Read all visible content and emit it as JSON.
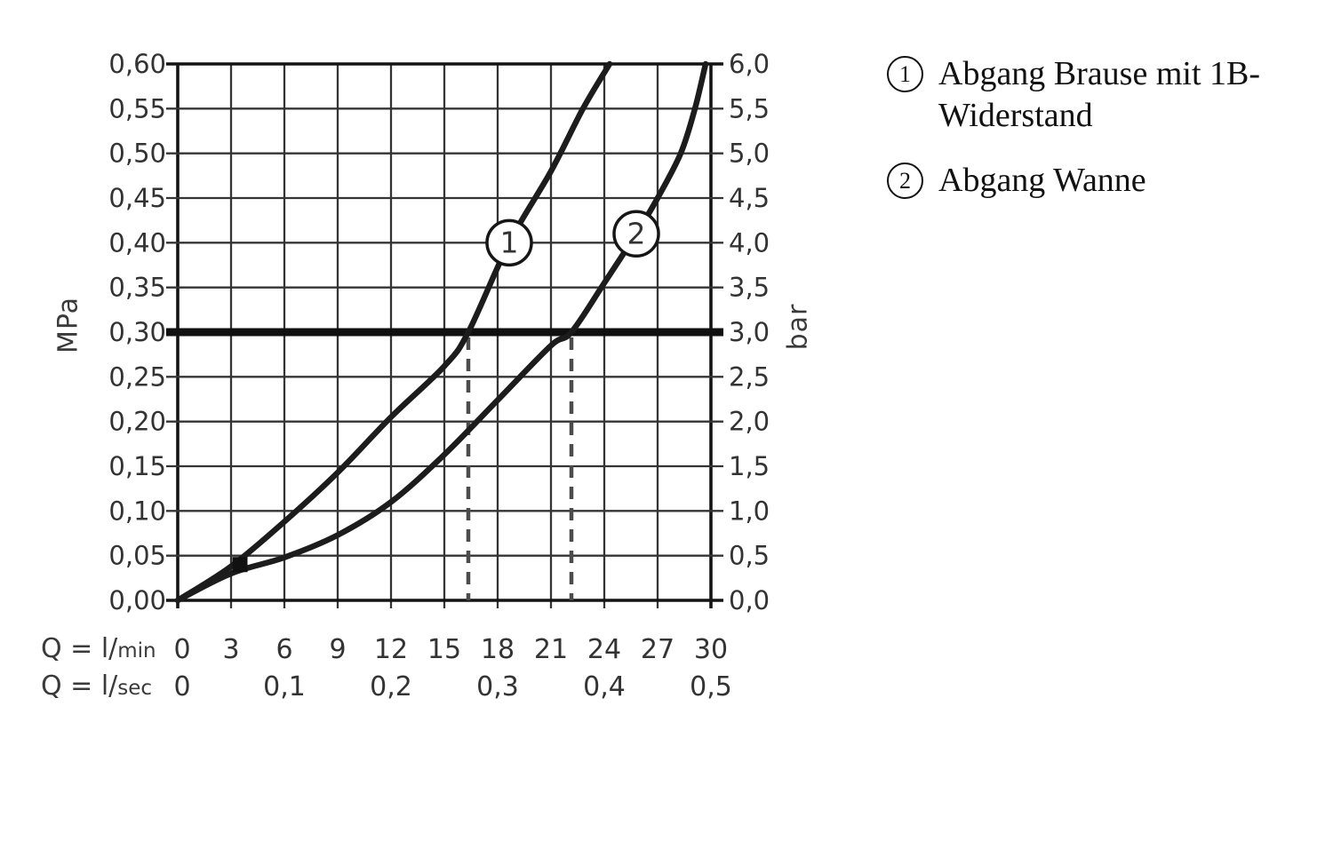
{
  "page": {
    "background": "#ffffff"
  },
  "chart_data": {
    "type": "line",
    "title": "",
    "grid": true,
    "line_color": "#1c1c1c",
    "x_axis": {
      "xlim_lmin": [
        0,
        30
      ],
      "primary_prefix": "Q = l/",
      "primary_unit": "min",
      "secondary_prefix": "Q = l/",
      "secondary_unit": "sec",
      "lmin_ticks": [
        {
          "label": "0",
          "q": 0
        },
        {
          "label": "3",
          "q": 3
        },
        {
          "label": "6",
          "q": 6
        },
        {
          "label": "9",
          "q": 9
        },
        {
          "label": "12",
          "q": 12
        },
        {
          "label": "15",
          "q": 15
        },
        {
          "label": "18",
          "q": 18
        },
        {
          "label": "21",
          "q": 21
        },
        {
          "label": "24",
          "q": 24
        },
        {
          "label": "27",
          "q": 27
        },
        {
          "label": "30",
          "q": 30
        }
      ],
      "lsec_ticks": [
        {
          "label": "0",
          "q": 0
        },
        {
          "label": "0,1",
          "q": 6
        },
        {
          "label": "0,2",
          "q": 12
        },
        {
          "label": "0,3",
          "q": 18
        },
        {
          "label": "0,4",
          "q": 24
        },
        {
          "label": "0,5",
          "q": 30
        }
      ]
    },
    "y_axis_left": {
      "unit": "MPa",
      "ylim": [
        0,
        0.6
      ],
      "step": 0.05,
      "tick_labels_top_to_bottom": [
        "0,60",
        "0,55",
        "0,50",
        "0,45",
        "0,40",
        "0,35",
        "0,30",
        "0,25",
        "0,20",
        "0,15",
        "0,10",
        "0,05",
        "0,00"
      ]
    },
    "y_axis_right": {
      "unit": "bar",
      "ylim": [
        0,
        6.0
      ],
      "step": 0.5,
      "tick_labels_top_to_bottom": [
        "6,0",
        "5,5",
        "5,0",
        "4,5",
        "4,0",
        "3,5",
        "3,0",
        "2,5",
        "2,0",
        "1,5",
        "1,0",
        "0,5",
        "0,0"
      ]
    },
    "reference_pressure_mpa": 0.3,
    "dashed_flow_lines_lmin": [
      16.35,
      22.15
    ],
    "start_marker_square_lmin_mpa": [
      3.5,
      0.04
    ],
    "series": [
      {
        "id": "1",
        "badge": "1",
        "name": "Abgang Brause mit 1B-Widerstand",
        "badge_pos_lmin_mpa": [
          18.65,
          0.4
        ],
        "points_lmin_mpa": [
          [
            0,
            0
          ],
          [
            3,
            0.038
          ],
          [
            6,
            0.088
          ],
          [
            9,
            0.143
          ],
          [
            12,
            0.205
          ],
          [
            15,
            0.262
          ],
          [
            16.35,
            0.3
          ],
          [
            18.65,
            0.4
          ],
          [
            21,
            0.48
          ],
          [
            22.8,
            0.55
          ],
          [
            24.3,
            0.6
          ]
        ]
      },
      {
        "id": "2",
        "badge": "2",
        "name": "Abgang Wanne",
        "badge_pos_lmin_mpa": [
          25.8,
          0.41
        ],
        "points_lmin_mpa": [
          [
            0,
            0
          ],
          [
            3,
            0.03
          ],
          [
            6,
            0.048
          ],
          [
            9,
            0.073
          ],
          [
            12,
            0.11
          ],
          [
            15,
            0.163
          ],
          [
            18,
            0.224
          ],
          [
            21,
            0.285
          ],
          [
            22.15,
            0.3
          ],
          [
            24,
            0.355
          ],
          [
            25.8,
            0.41
          ],
          [
            27,
            0.45
          ],
          [
            28.3,
            0.5
          ],
          [
            29.1,
            0.55
          ],
          [
            29.7,
            0.6
          ]
        ]
      }
    ]
  },
  "legend": {
    "items": [
      {
        "number": "1",
        "text_line1": "Abgang Brause mit 1B-",
        "text_line2": "Widerstand"
      },
      {
        "number": "2",
        "text_line1": "Abgang Wanne"
      }
    ]
  }
}
